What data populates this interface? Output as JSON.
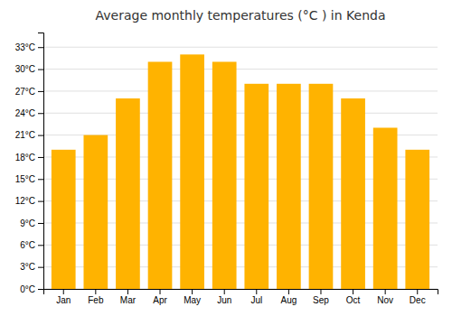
{
  "chart_data": {
    "type": "bar",
    "title": "Average monthly temperatures (°C ) in Kenda",
    "categories": [
      "Jan",
      "Feb",
      "Mar",
      "Apr",
      "May",
      "Jun",
      "Jul",
      "Aug",
      "Sep",
      "Oct",
      "Nov",
      "Dec"
    ],
    "values": [
      19,
      21,
      26,
      31,
      32,
      31,
      28,
      28,
      28,
      26,
      22,
      19
    ],
    "color": "#FFB300",
    "ylim": [
      0,
      35
    ],
    "yticks": [
      {
        "value": 0,
        "label": "0°C"
      },
      {
        "value": 3,
        "label": "3°C"
      },
      {
        "value": 6,
        "label": "6°C"
      },
      {
        "value": 9,
        "label": "9°C"
      },
      {
        "value": 12,
        "label": "12°C"
      },
      {
        "value": 15,
        "label": "15°C"
      },
      {
        "value": 18,
        "label": "18°C"
      },
      {
        "value": 21,
        "label": "21°C"
      },
      {
        "value": 24,
        "label": "24°C"
      },
      {
        "value": 27,
        "label": "27°C"
      },
      {
        "value": 30,
        "label": "30°C"
      },
      {
        "value": 33,
        "label": "33°C"
      }
    ],
    "grid": true
  }
}
